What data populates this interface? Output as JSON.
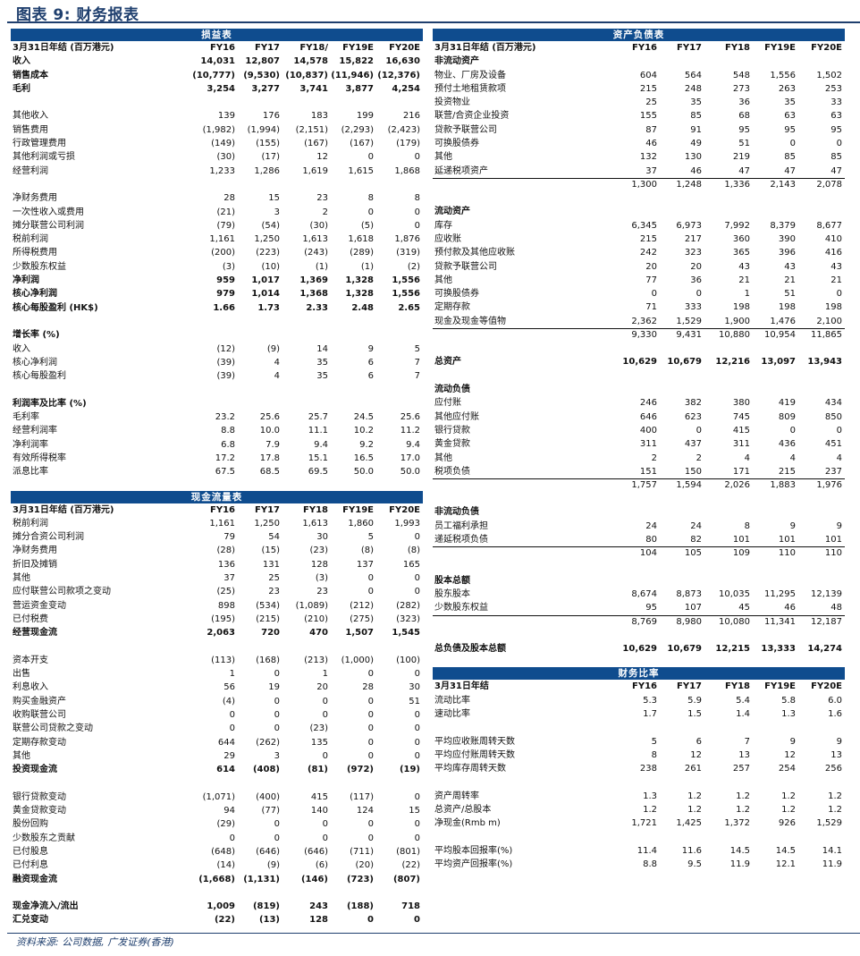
{
  "title": "图表 9: 财务报表",
  "footer": "资料来源: 公司数据, 广发证券(香港)",
  "colors": {
    "header_bar": "#0f4c8e",
    "title": "#1f3f6e"
  },
  "left": [
    {
      "key": "income",
      "title": "损益表",
      "header": {
        "label": "3月31日年结 (百万港元)",
        "values": [
          "FY16",
          "FY17",
          "FY18/",
          "FY19E",
          "FY20E"
        ]
      },
      "rows": [
        {
          "label": "收入",
          "values": [
            "14,031",
            "12,807",
            "14,578",
            "15,822",
            "16,630"
          ],
          "style": "b"
        },
        {
          "label": "销售成本",
          "values": [
            "(10,777)",
            "(9,530)",
            "(10,837)",
            "(11,946)",
            "(12,376)"
          ],
          "style": "b"
        },
        {
          "label": "毛利",
          "values": [
            "3,254",
            "3,277",
            "3,741",
            "3,877",
            "4,254"
          ],
          "style": "b"
        },
        {},
        {
          "label": "其他收入",
          "values": [
            "139",
            "176",
            "183",
            "199",
            "216"
          ]
        },
        {
          "label": "销售费用",
          "values": [
            "(1,982)",
            "(1,994)",
            "(2,151)",
            "(2,293)",
            "(2,423)"
          ]
        },
        {
          "label": "行政管理费用",
          "values": [
            "(149)",
            "(155)",
            "(167)",
            "(167)",
            "(179)"
          ]
        },
        {
          "label": "其他利润或亏损",
          "values": [
            "(30)",
            "(17)",
            "12",
            "0",
            "0"
          ]
        },
        {
          "label": "经营利润",
          "values": [
            "1,233",
            "1,286",
            "1,619",
            "1,615",
            "1,868"
          ]
        },
        {},
        {
          "label": "净财务费用",
          "values": [
            "28",
            "15",
            "23",
            "8",
            "8"
          ]
        },
        {
          "label": "一次性收入或费用",
          "values": [
            "(21)",
            "3",
            "2",
            "0",
            "0"
          ]
        },
        {
          "label": "摊分联营公司利润",
          "values": [
            "(79)",
            "(54)",
            "(30)",
            "(5)",
            "0"
          ]
        },
        {
          "label": "税前利润",
          "values": [
            "1,161",
            "1,250",
            "1,613",
            "1,618",
            "1,876"
          ]
        },
        {
          "label": "所得税费用",
          "values": [
            "(200)",
            "(223)",
            "(243)",
            "(289)",
            "(319)"
          ]
        },
        {
          "label": "少数股东权益",
          "values": [
            "(3)",
            "(10)",
            "(1)",
            "(1)",
            "(2)"
          ]
        },
        {
          "label": "净利润",
          "values": [
            "959",
            "1,017",
            "1,369",
            "1,328",
            "1,556"
          ],
          "style": "b"
        },
        {
          "label": "核心净利润",
          "values": [
            "979",
            "1,014",
            "1,368",
            "1,328",
            "1,556"
          ],
          "style": "b"
        },
        {
          "label": "核心每股盈利 (HK$)",
          "values": [
            "1.66",
            "1.73",
            "2.33",
            "2.48",
            "2.65"
          ],
          "style": "b"
        },
        {},
        {
          "label": "增长率 (%)",
          "style": "h"
        },
        {
          "label": "收入",
          "values": [
            "(12)",
            "(9)",
            "14",
            "9",
            "5"
          ]
        },
        {
          "label": "核心净利润",
          "values": [
            "(39)",
            "4",
            "35",
            "6",
            "7"
          ]
        },
        {
          "label": "核心每股盈利",
          "values": [
            "(39)",
            "4",
            "35",
            "6",
            "7"
          ]
        },
        {},
        {
          "label": "利润率及比率 (%)",
          "style": "h"
        },
        {
          "label": "毛利率",
          "values": [
            "23.2",
            "25.6",
            "25.7",
            "24.5",
            "25.6"
          ]
        },
        {
          "label": "经营利润率",
          "values": [
            "8.8",
            "10.0",
            "11.1",
            "10.2",
            "11.2"
          ]
        },
        {
          "label": "净利润率",
          "values": [
            "6.8",
            "7.9",
            "9.4",
            "9.2",
            "9.4"
          ]
        },
        {
          "label": "有效所得税率",
          "values": [
            "17.2",
            "17.8",
            "15.1",
            "16.5",
            "17.0"
          ]
        },
        {
          "label": "派息比率",
          "values": [
            "67.5",
            "68.5",
            "69.5",
            "50.0",
            "50.0"
          ]
        }
      ]
    },
    {
      "key": "cashflow",
      "title": "现金流量表",
      "header": {
        "label": "3月31日年结 (百万港元)",
        "values": [
          "FY16",
          "FY17",
          "FY18",
          "FY19E",
          "FY20E"
        ]
      },
      "rows": [
        {
          "label": "税前利润",
          "values": [
            "1,161",
            "1,250",
            "1,613",
            "1,860",
            "1,993"
          ]
        },
        {
          "label": "摊分合资公司利润",
          "values": [
            "79",
            "54",
            "30",
            "5",
            "0"
          ]
        },
        {
          "label": "净财务费用",
          "values": [
            "(28)",
            "(15)",
            "(23)",
            "(8)",
            "(8)"
          ]
        },
        {
          "label": "折旧及摊销",
          "values": [
            "136",
            "131",
            "128",
            "137",
            "165"
          ]
        },
        {
          "label": "其他",
          "values": [
            "37",
            "25",
            "(3)",
            "0",
            "0"
          ]
        },
        {
          "label": "应付联营公司款项之变动",
          "values": [
            "(25)",
            "23",
            "23",
            "0",
            "0"
          ]
        },
        {
          "label": "营运资金变动",
          "values": [
            "898",
            "(534)",
            "(1,089)",
            "(212)",
            "(282)"
          ]
        },
        {
          "label": "已付税费",
          "values": [
            "(195)",
            "(215)",
            "(210)",
            "(275)",
            "(323)"
          ]
        },
        {
          "label": "经营现金流",
          "values": [
            "2,063",
            "720",
            "470",
            "1,507",
            "1,545"
          ],
          "style": "b"
        },
        {},
        {
          "label": "资本开支",
          "values": [
            "(113)",
            "(168)",
            "(213)",
            "(1,000)",
            "(100)"
          ]
        },
        {
          "label": "出售",
          "values": [
            "1",
            "0",
            "1",
            "0",
            "0"
          ]
        },
        {
          "label": "利息收入",
          "values": [
            "56",
            "19",
            "20",
            "28",
            "30"
          ]
        },
        {
          "label": "购买金融资产",
          "values": [
            "(4)",
            "0",
            "0",
            "0",
            "51"
          ]
        },
        {
          "label": "收购联营公司",
          "values": [
            "0",
            "0",
            "0",
            "0",
            "0"
          ]
        },
        {
          "label": "联营公司贷款之变动",
          "values": [
            "0",
            "0",
            "(23)",
            "0",
            "0"
          ]
        },
        {
          "label": "定期存款变动",
          "values": [
            "644",
            "(262)",
            "135",
            "0",
            "0"
          ]
        },
        {
          "label": "其他",
          "values": [
            "29",
            "3",
            "0",
            "0",
            "0"
          ]
        },
        {
          "label": "投资现金流",
          "values": [
            "614",
            "(408)",
            "(81)",
            "(972)",
            "(19)"
          ],
          "style": "b"
        },
        {},
        {
          "label": "银行贷款变动",
          "values": [
            "(1,071)",
            "(400)",
            "415",
            "(117)",
            "0"
          ]
        },
        {
          "label": "黄金贷款变动",
          "values": [
            "94",
            "(77)",
            "140",
            "124",
            "15"
          ]
        },
        {
          "label": "股份回购",
          "values": [
            "(29)",
            "0",
            "0",
            "0",
            "0"
          ]
        },
        {
          "label": "少数股东之贡献",
          "values": [
            "0",
            "0",
            "0",
            "0",
            "0"
          ]
        },
        {
          "label": "已付股息",
          "values": [
            "(648)",
            "(646)",
            "(646)",
            "(711)",
            "(801)"
          ]
        },
        {
          "label": "已付利息",
          "values": [
            "(14)",
            "(9)",
            "(6)",
            "(20)",
            "(22)"
          ]
        },
        {
          "label": "融资现金流",
          "values": [
            "(1,668)",
            "(1,131)",
            "(146)",
            "(723)",
            "(807)"
          ],
          "style": "b"
        },
        {},
        {
          "label": "现金净流入/流出",
          "values": [
            "1,009",
            "(819)",
            "243",
            "(188)",
            "718"
          ],
          "style": "b"
        },
        {
          "label": "汇兑变动",
          "values": [
            "(22)",
            "(13)",
            "128",
            "0",
            "0"
          ],
          "style": "b"
        }
      ]
    }
  ],
  "right": [
    {
      "key": "balance",
      "title": "资产负债表",
      "header": {
        "label": "3月31日年结 (百万港元)",
        "values": [
          "FY16",
          "FY17",
          "FY18",
          "FY19E",
          "FY20E"
        ]
      },
      "rows": [
        {
          "label": "非流动资产",
          "style": "h"
        },
        {
          "label": "物业、厂房及设备",
          "values": [
            "604",
            "564",
            "548",
            "1,556",
            "1,502"
          ]
        },
        {
          "label": "预付土地租赁款项",
          "values": [
            "215",
            "248",
            "273",
            "263",
            "253"
          ]
        },
        {
          "label": "投资物业",
          "values": [
            "25",
            "35",
            "36",
            "35",
            "33"
          ]
        },
        {
          "label": "联营/合资企业投资",
          "values": [
            "155",
            "85",
            "68",
            "63",
            "63"
          ]
        },
        {
          "label": "贷款予联营公司",
          "values": [
            "87",
            "91",
            "95",
            "95",
            "95"
          ]
        },
        {
          "label": "可换股债券",
          "values": [
            "46",
            "49",
            "51",
            "0",
            "0"
          ]
        },
        {
          "label": "其他",
          "values": [
            "132",
            "130",
            "219",
            "85",
            "85"
          ]
        },
        {
          "label": "延递税项资产",
          "values": [
            "37",
            "46",
            "47",
            "47",
            "47"
          ]
        },
        {
          "label": "",
          "values": [
            "1,300",
            "1,248",
            "1,336",
            "2,143",
            "2,078"
          ],
          "style": "t"
        },
        {},
        {
          "label": "流动资产",
          "style": "h"
        },
        {
          "label": "库存",
          "values": [
            "6,345",
            "6,973",
            "7,992",
            "8,379",
            "8,677"
          ]
        },
        {
          "label": "应收账",
          "values": [
            "215",
            "217",
            "360",
            "390",
            "410"
          ]
        },
        {
          "label": "预付款及其他应收账",
          "values": [
            "242",
            "323",
            "365",
            "396",
            "416"
          ]
        },
        {
          "label": "贷款予联营公司",
          "values": [
            "20",
            "20",
            "43",
            "43",
            "43"
          ]
        },
        {
          "label": "其他",
          "values": [
            "77",
            "36",
            "21",
            "21",
            "21"
          ]
        },
        {
          "label": "可换股债券",
          "values": [
            "0",
            "0",
            "1",
            "51",
            "0"
          ]
        },
        {
          "label": "定期存款",
          "values": [
            "71",
            "333",
            "198",
            "198",
            "198"
          ]
        },
        {
          "label": "现金及现金等值物",
          "values": [
            "2,362",
            "1,529",
            "1,900",
            "1,476",
            "2,100"
          ]
        },
        {
          "label": "",
          "values": [
            "9,330",
            "9,431",
            "10,880",
            "10,954",
            "11,865"
          ],
          "style": "t"
        },
        {},
        {
          "label": "总资产",
          "values": [
            "10,629",
            "10,679",
            "12,216",
            "13,097",
            "13,943"
          ],
          "style": "b"
        },
        {},
        {
          "label": "流动负债",
          "style": "h"
        },
        {
          "label": "应付账",
          "values": [
            "246",
            "382",
            "380",
            "419",
            "434"
          ]
        },
        {
          "label": "其他应付账",
          "values": [
            "646",
            "623",
            "745",
            "809",
            "850"
          ]
        },
        {
          "label": "银行贷款",
          "values": [
            "400",
            "0",
            "415",
            "0",
            "0"
          ]
        },
        {
          "label": "黄金贷款",
          "values": [
            "311",
            "437",
            "311",
            "436",
            "451"
          ]
        },
        {
          "label": "其他",
          "values": [
            "2",
            "2",
            "4",
            "4",
            "4"
          ]
        },
        {
          "label": "税项负债",
          "values": [
            "151",
            "150",
            "171",
            "215",
            "237"
          ]
        },
        {
          "label": "",
          "values": [
            "1,757",
            "1,594",
            "2,026",
            "1,883",
            "1,976"
          ],
          "style": "t"
        },
        {},
        {
          "label": "非流动负债",
          "style": "h"
        },
        {
          "label": "员工福利承担",
          "values": [
            "24",
            "24",
            "8",
            "9",
            "9"
          ]
        },
        {
          "label": "递延税项负债",
          "values": [
            "80",
            "82",
            "101",
            "101",
            "101"
          ]
        },
        {
          "label": "",
          "values": [
            "104",
            "105",
            "109",
            "110",
            "110"
          ],
          "style": "t"
        },
        {},
        {
          "label": "股本总额",
          "style": "h"
        },
        {
          "label": "股东股本",
          "values": [
            "8,674",
            "8,873",
            "10,035",
            "11,295",
            "12,139"
          ]
        },
        {
          "label": "少数股东权益",
          "values": [
            "95",
            "107",
            "45",
            "46",
            "48"
          ]
        },
        {
          "label": "",
          "values": [
            "8,769",
            "8,980",
            "10,080",
            "11,341",
            "12,187"
          ],
          "style": "t"
        },
        {},
        {
          "label": "总负债及股本总额",
          "values": [
            "10,629",
            "10,679",
            "12,215",
            "13,333",
            "14,274"
          ],
          "style": "b"
        }
      ]
    },
    {
      "key": "ratios",
      "title": "财务比率",
      "header": {
        "label": "3月31日年结",
        "values": [
          "FY16",
          "FY17",
          "FY18",
          "FY19E",
          "FY20E"
        ]
      },
      "rows": [
        {
          "label": "流动比率",
          "values": [
            "5.3",
            "5.9",
            "5.4",
            "5.8",
            "6.0"
          ]
        },
        {
          "label": "速动比率",
          "values": [
            "1.7",
            "1.5",
            "1.4",
            "1.3",
            "1.6"
          ]
        },
        {},
        {
          "label": "平均应收账周转天数",
          "values": [
            "5",
            "6",
            "7",
            "9",
            "9"
          ]
        },
        {
          "label": "平均应付账周转天数",
          "values": [
            "8",
            "12",
            "13",
            "12",
            "13"
          ]
        },
        {
          "label": "平均库存周转天数",
          "values": [
            "238",
            "261",
            "257",
            "254",
            "256"
          ]
        },
        {},
        {
          "label": "资产周转率",
          "values": [
            "1.3",
            "1.2",
            "1.2",
            "1.2",
            "1.2"
          ]
        },
        {
          "label": "总资产/总股本",
          "values": [
            "1.2",
            "1.2",
            "1.2",
            "1.2",
            "1.2"
          ]
        },
        {
          "label": "净现金(Rmb m)",
          "values": [
            "1,721",
            "1,425",
            "1,372",
            "926",
            "1,529"
          ]
        },
        {},
        {
          "label": "平均股本回报率(%)",
          "values": [
            "11.4",
            "11.6",
            "14.5",
            "14.5",
            "14.1"
          ]
        },
        {
          "label": "平均资产回报率(%)",
          "values": [
            "8.8",
            "9.5",
            "11.9",
            "12.1",
            "11.9"
          ]
        }
      ]
    }
  ]
}
